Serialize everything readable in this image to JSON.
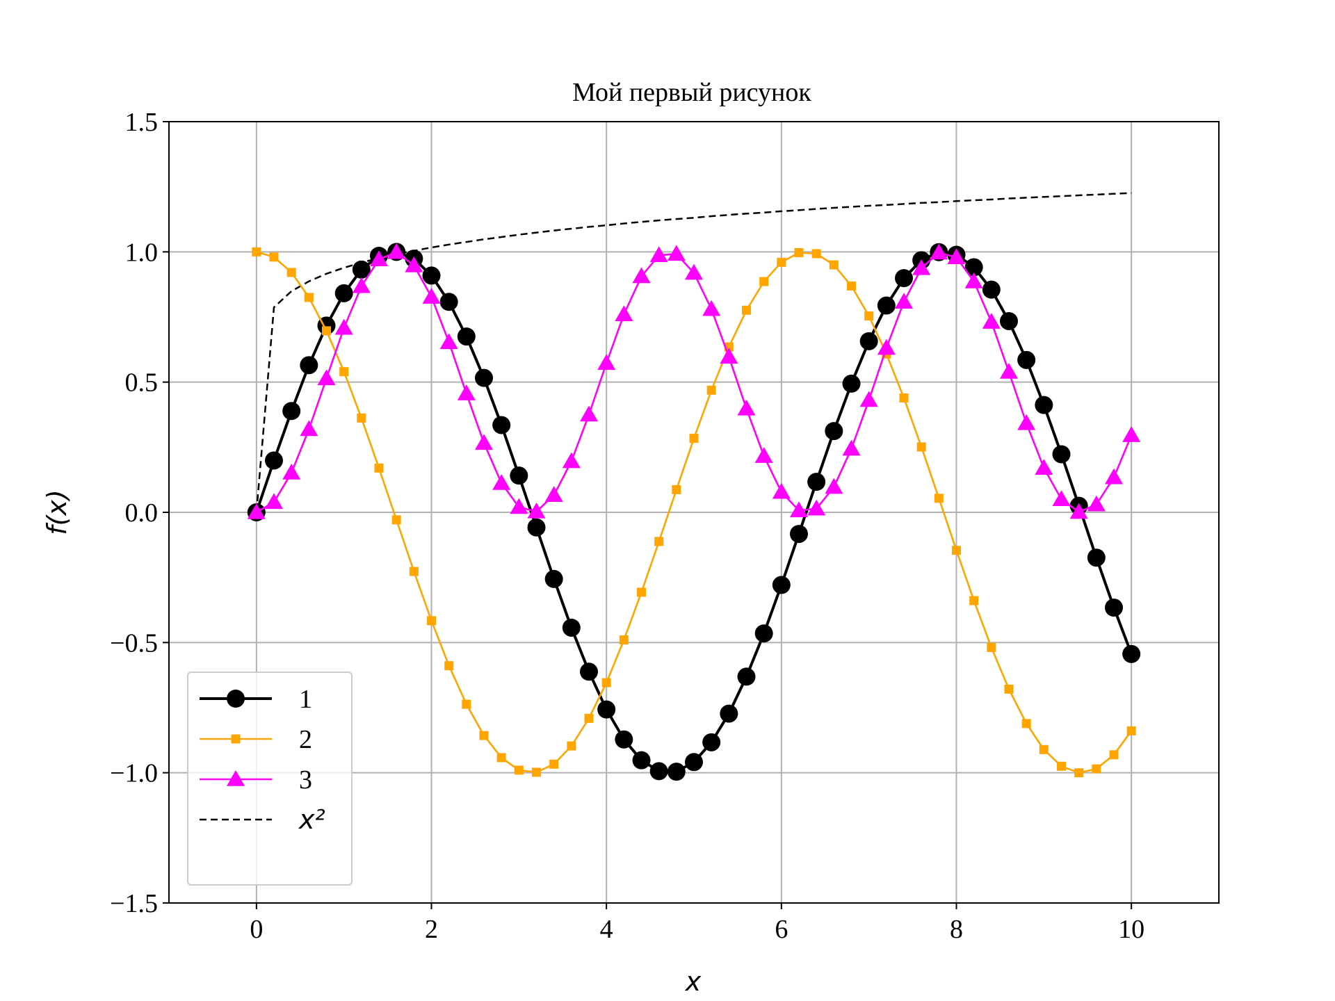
{
  "chart_data": {
    "type": "line",
    "title": "Мой первый рисунок",
    "xlabel": "x",
    "ylabel": "f(x)",
    "xlim": [
      -1,
      11
    ],
    "ylim": [
      -1.5,
      1.5
    ],
    "grid": true,
    "legend_placement": "lower left",
    "x_ticks": [
      "0",
      "2",
      "4",
      "6",
      "8",
      "10"
    ],
    "y_ticks": [
      "−1.5",
      "−1.0",
      "−0.5",
      "0.0",
      "0.5",
      "1.0",
      "1.5"
    ],
    "x": [
      0.0,
      0.2,
      0.4,
      0.6,
      0.8,
      1.0,
      1.2,
      1.4,
      1.6,
      1.8,
      2.0,
      2.2,
      2.4,
      2.6,
      2.8,
      3.0,
      3.2,
      3.4,
      3.6,
      3.8,
      4.0,
      4.2,
      4.4,
      4.6,
      4.8,
      5.0,
      5.2,
      5.4,
      5.6,
      5.8,
      6.0,
      6.2,
      6.4,
      6.6,
      6.8,
      7.0,
      7.2,
      7.4,
      7.6,
      7.8,
      8.0,
      8.2,
      8.4,
      8.6,
      8.8,
      9.0,
      9.2,
      9.4,
      9.6,
      9.8,
      10.0
    ],
    "series": [
      {
        "name": "1",
        "color": "#000000",
        "marker": "circle",
        "line": "solid",
        "values": [
          0.0,
          0.199,
          0.389,
          0.565,
          0.717,
          0.841,
          0.932,
          0.985,
          1.0,
          0.974,
          0.909,
          0.808,
          0.675,
          0.516,
          0.335,
          0.141,
          -0.058,
          -0.256,
          -0.443,
          -0.612,
          -0.757,
          -0.872,
          -0.952,
          -0.994,
          -0.996,
          -0.959,
          -0.883,
          -0.773,
          -0.631,
          -0.465,
          -0.279,
          -0.083,
          0.117,
          0.312,
          0.494,
          0.657,
          0.794,
          0.899,
          0.968,
          0.999,
          0.989,
          0.941,
          0.855,
          0.734,
          0.585,
          0.412,
          0.223,
          0.025,
          -0.174,
          -0.366,
          -0.544
        ]
      },
      {
        "name": "2",
        "color": "#ffa500",
        "marker": "square",
        "line": "solid",
        "values": [
          1.0,
          0.98,
          0.921,
          0.825,
          0.697,
          0.54,
          0.362,
          0.17,
          -0.029,
          -0.227,
          -0.416,
          -0.589,
          -0.737,
          -0.857,
          -0.942,
          -0.99,
          -0.998,
          -0.967,
          -0.897,
          -0.791,
          -0.654,
          -0.49,
          -0.307,
          -0.112,
          0.087,
          0.284,
          0.469,
          0.635,
          0.776,
          0.886,
          0.96,
          0.997,
          0.993,
          0.95,
          0.869,
          0.754,
          0.608,
          0.439,
          0.251,
          0.054,
          -0.146,
          -0.339,
          -0.519,
          -0.679,
          -0.811,
          -0.911,
          -0.975,
          -1.0,
          -0.985,
          -0.931,
          -0.839
        ]
      },
      {
        "name": "3",
        "color": "#ff00ff",
        "marker": "triangle",
        "line": "solid",
        "values": [
          0.0,
          0.039,
          0.152,
          0.319,
          0.514,
          0.708,
          0.868,
          0.971,
          0.999,
          0.948,
          0.827,
          0.653,
          0.456,
          0.266,
          0.112,
          0.02,
          0.003,
          0.066,
          0.196,
          0.375,
          0.573,
          0.76,
          0.906,
          0.987,
          0.992,
          0.919,
          0.78,
          0.597,
          0.398,
          0.216,
          0.078,
          0.007,
          0.014,
          0.097,
          0.244,
          0.431,
          0.631,
          0.808,
          0.937,
          0.997,
          0.979,
          0.886,
          0.731,
          0.539,
          0.342,
          0.17,
          0.05,
          0.001,
          0.03,
          0.134,
          0.296
        ]
      },
      {
        "name": "x²",
        "color": "#000000",
        "marker": "none",
        "line": "dashed",
        "values": [
          0.0,
          0.787,
          0.849,
          0.887,
          0.916,
          0.939,
          0.959,
          0.976,
          0.991,
          1.004,
          1.017,
          1.028,
          1.038,
          1.048,
          1.057,
          1.066,
          1.074,
          1.082,
          1.089,
          1.096,
          1.102,
          1.109,
          1.115,
          1.121,
          1.126,
          1.131,
          1.137,
          1.142,
          1.147,
          1.151,
          1.156,
          1.16,
          1.165,
          1.169,
          1.173,
          1.177,
          1.18,
          1.184,
          1.188,
          1.191,
          1.195,
          1.198,
          1.201,
          1.205,
          1.208,
          1.211,
          1.214,
          1.217,
          1.22,
          1.223,
          1.226
        ]
      }
    ]
  }
}
